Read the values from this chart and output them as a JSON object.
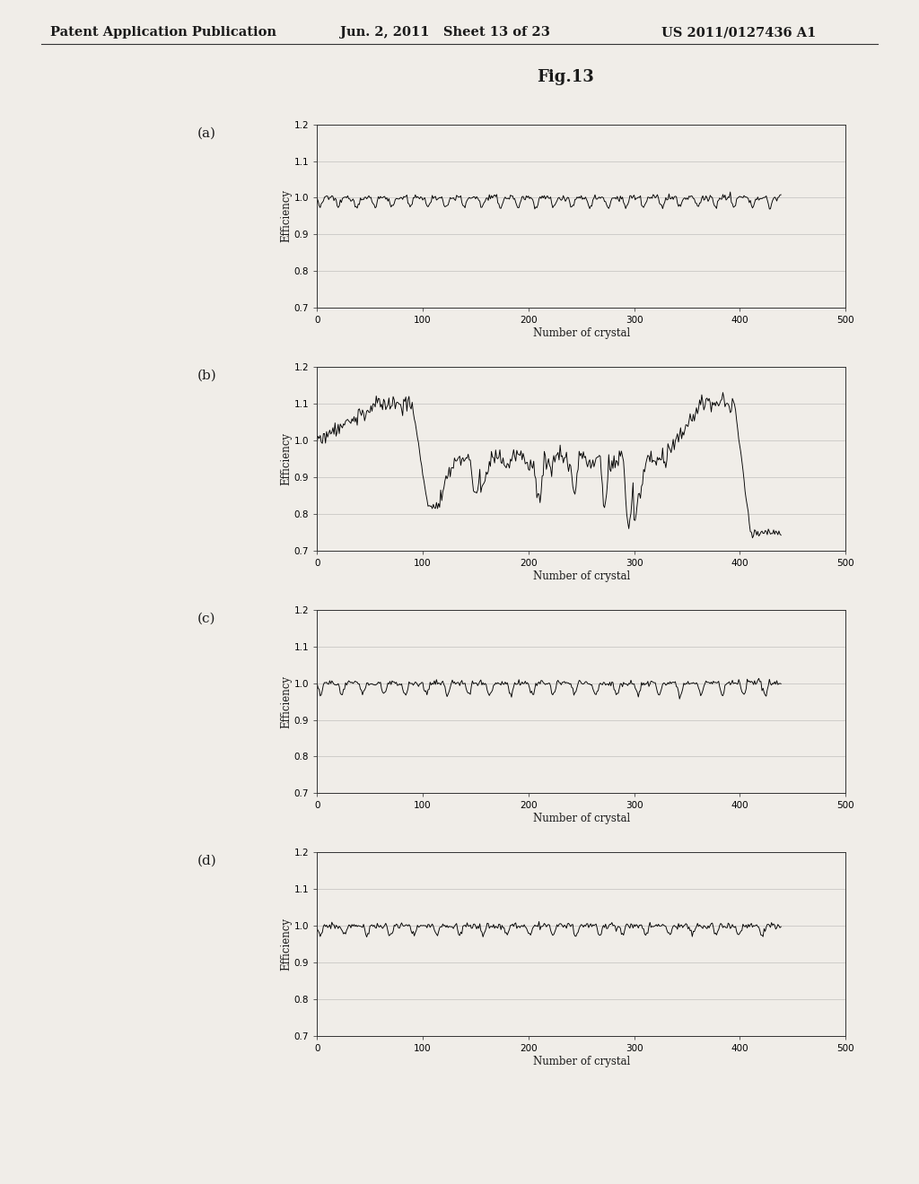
{
  "title": "Fig.13",
  "header_left": "Patent Application Publication",
  "header_middle": "Jun. 2, 2011   Sheet 13 of 23",
  "header_right": "US 2011/0127436 A1",
  "subplot_labels": [
    "(a)",
    "(b)",
    "(c)",
    "(d)"
  ],
  "xlabel": "Number of crystal",
  "ylabel": "Efficiency",
  "xlim": [
    0,
    500
  ],
  "ylim": [
    0.7,
    1.2
  ],
  "yticks": [
    0.7,
    0.8,
    0.9,
    1.0,
    1.1,
    1.2
  ],
  "xticks": [
    0,
    100,
    200,
    300,
    400,
    500
  ],
  "background_color": "#f0ede8",
  "line_color": "#000000",
  "grid_color": "#999999",
  "header_fontsize": 10.5,
  "title_fontsize": 13,
  "axis_fontsize": 7.5,
  "label_fontsize": 8.5,
  "subplot_label_fontsize": 11
}
